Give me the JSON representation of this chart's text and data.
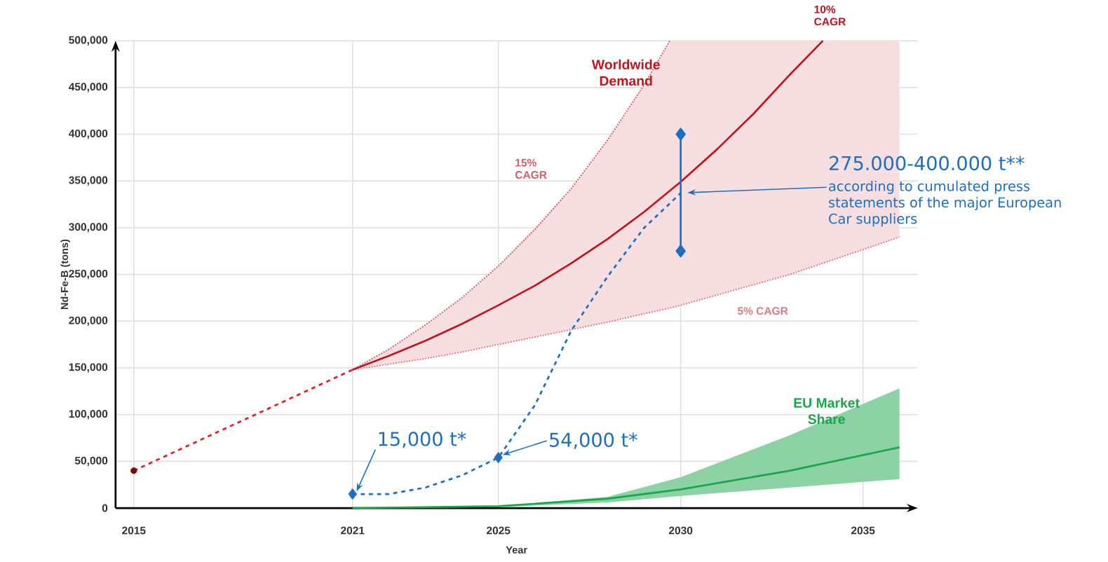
{
  "chart_data": {
    "type": "line",
    "xlabel": "Year",
    "ylabel": "Nd-Fe-B (tons)",
    "xlim": [
      2014.5,
      2036.5
    ],
    "xticks": [
      2015,
      2021,
      2025,
      2030,
      2035
    ],
    "ylim": [
      0,
      500000
    ],
    "yticks": [
      0,
      {
        "value": 50000,
        "label": "50,000"
      },
      {
        "value": 100000,
        "label": "100,000"
      },
      {
        "value": 150000,
        "label": "150,000"
      },
      {
        "value": 200000,
        "label": "200,000"
      },
      {
        "value": 250000,
        "label": "250,000"
      },
      {
        "value": 300000,
        "label": "300,000"
      },
      {
        "value": 350000,
        "label": "350,000"
      },
      {
        "value": 400000,
        "label": "400,000"
      },
      {
        "value": 450000,
        "label": "450,000"
      },
      {
        "value": 500000,
        "label": "500,000"
      }
    ],
    "grid": true,
    "marker": "none",
    "line_style": "solid",
    "series": [
      {
        "name": "5% CAGR",
        "color": "#e07a82",
        "line_style": "dotted",
        "x": [
          2021,
          2022,
          2023,
          2024,
          2025,
          2027,
          2028,
          2029,
          2029.7,
          2030,
          2033,
          2036
        ],
        "values": [
          148000,
          154000,
          160000,
          167000,
          175000,
          191000,
          199000,
          208000,
          214000,
          217000,
          250000,
          290000
        ],
        "lower": [
          148000,
          154000,
          160000,
          167000,
          175000,
          191000,
          199000,
          208000,
          214000,
          217000,
          250000,
          290000
        ],
        "upper": [
          148000,
          170000,
          196000,
          225000,
          259000,
          342000,
          394000,
          453000,
          500000,
          500000,
          500000,
          500000
        ]
      },
      {
        "name": "15% CAGR",
        "color": "#d0606a",
        "line_style": "dotted",
        "x": [
          2021,
          2022,
          2023,
          2024,
          2025,
          2026,
          2027,
          2028,
          2029,
          2029.7
        ],
        "values": [
          148000,
          170000,
          196000,
          225000,
          259000,
          298000,
          342000,
          394000,
          453000,
          500000
        ]
      },
      {
        "name": "10% CAGR",
        "color": "#c0141e",
        "x": [
          2021,
          2022,
          2023,
          2024,
          2025,
          2026,
          2027,
          2028,
          2029,
          2030,
          2031,
          2032,
          2033,
          2033.9
        ],
        "values": [
          148000,
          163000,
          179000,
          197000,
          217000,
          238000,
          262000,
          288000,
          317000,
          349000,
          384000,
          422000,
          464000,
          500000
        ]
      },
      {
        "color": "#e02020",
        "line_style": "dashed",
        "x": [
          2015,
          2021
        ],
        "values": [
          40000,
          148000
        ]
      },
      {
        "type": "scatter",
        "color": "#7a0c0c",
        "marker": "circle",
        "x": [
          2015
        ],
        "values": [
          40000
        ]
      },
      {
        "color": "#1aa64a",
        "x": [
          2021,
          2025,
          2028,
          2030,
          2033,
          2036
        ],
        "values": [
          0,
          2000,
          10000,
          20000,
          40000,
          65000
        ],
        "lower": [
          0,
          1000,
          6000,
          13000,
          22000,
          31000
        ],
        "upper": [
          0,
          2000,
          12000,
          33000,
          78000,
          128000
        ]
      },
      {
        "color": "#1f6fc0",
        "line_style": "dashed",
        "x": [
          2021,
          2022,
          2023,
          2024,
          2025,
          2026,
          2027,
          2028,
          2029,
          2030
        ],
        "values": [
          15000,
          15000,
          22000,
          35000,
          54000,
          110000,
          190000,
          248000,
          300000,
          337000
        ]
      },
      {
        "type": "scatter",
        "color": "#1f6fc0",
        "marker": "diamond",
        "x": [
          2021,
          2025
        ],
        "values": [
          15000,
          54000
        ]
      },
      {
        "color": "#1f6fc0",
        "marker": "diamond",
        "x": [
          2030,
          2030
        ],
        "values": [
          275000,
          400000
        ]
      }
    ],
    "annotations": [
      "Worldwide Demand",
      "EU Market Share",
      {
        "text": "15,000 t*",
        "x": 2021,
        "y": 15000
      },
      {
        "text": "54,000 t*",
        "x": 2025,
        "y": 54000
      },
      "275.000-400.000 t**",
      "according to cumulated press statements of the major European Car suppliers"
    ]
  }
}
